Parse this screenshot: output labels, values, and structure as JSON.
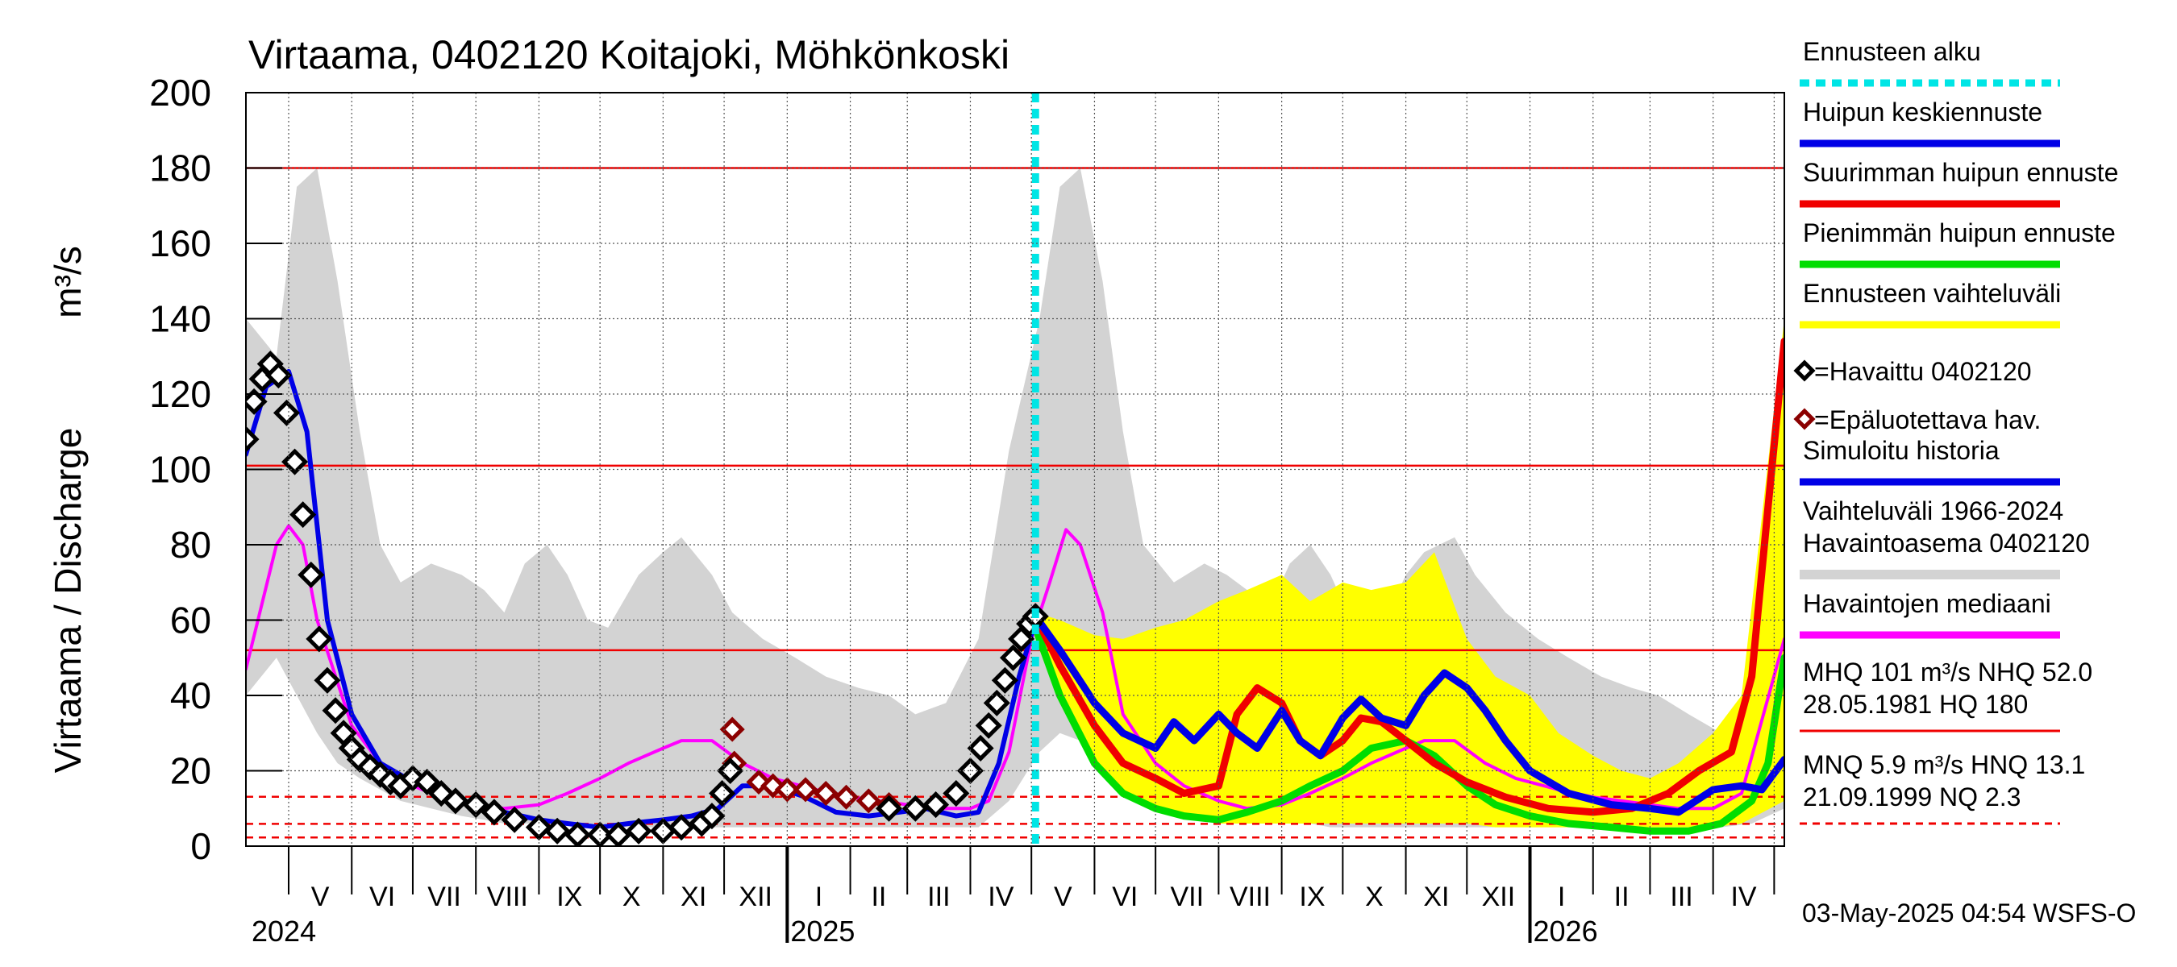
{
  "chart_data": {
    "type": "line",
    "title": "Virtaama, 0402120 Koitajoki, Möhkönkoski",
    "ylabel": "Virtaama / Discharge",
    "yunit": "m³/s",
    "ylim": [
      0,
      200
    ],
    "yticks": [
      "0",
      "20",
      "40",
      "60",
      "80",
      "100",
      "120",
      "140",
      "160",
      "180",
      "200"
    ],
    "xlim": [
      "2024-04-10",
      "2026-05-06"
    ],
    "months": [
      "V",
      "VI",
      "VII",
      "VIII",
      "IX",
      "X",
      "XI",
      "XII",
      "I",
      "II",
      "III",
      "IV",
      "V",
      "VI",
      "VII",
      "VIII",
      "IX",
      "X",
      "XI",
      "XII",
      "I",
      "II",
      "III",
      "IV"
    ],
    "years": [
      "2024",
      "2025",
      "2026"
    ],
    "grid": true,
    "legend_position": "right",
    "forecast_start": "2025-05-03",
    "reference_lines": [
      {
        "name": "HQ",
        "value": 180,
        "style": "solid"
      },
      {
        "name": "MHQ",
        "value": 101,
        "style": "solid"
      },
      {
        "name": "NHQ",
        "value": 52.0,
        "style": "solid"
      },
      {
        "name": "HNQ",
        "value": 13.1,
        "style": "dashed"
      },
      {
        "name": "MNQ",
        "value": 5.9,
        "style": "dashed"
      },
      {
        "name": "NQ",
        "value": 2.3,
        "style": "dashed"
      }
    ],
    "legend": [
      {
        "label": "Ennusteen alku",
        "color": "#00e5e5",
        "kind": "dashed"
      },
      {
        "label": "Huipun keskiennuste",
        "color": "#0000e6",
        "kind": "line"
      },
      {
        "label": "Suurimman huipun ennuste",
        "color": "#f00000",
        "kind": "line"
      },
      {
        "label": "Pienimmän huipun ennuste",
        "color": "#00dd00",
        "kind": "line"
      },
      {
        "label": "Ennusteen vaihteluväli",
        "color": "#ffff00",
        "kind": "line"
      },
      {
        "label": "=Havaittu 0402120",
        "color": "#000000",
        "kind": "diamond"
      },
      {
        "label": "=Epäluotettava hav.",
        "color": "#8b0000",
        "kind": "diamond"
      },
      {
        "label": "Simuloitu historia",
        "color": "#0000e6",
        "kind": "line"
      },
      {
        "label": "Vaihteluväli 1966-2024",
        "label2": " Havaintoasema 0402120",
        "color": "#d3d3d3",
        "kind": "band"
      },
      {
        "label": "Havaintojen mediaani",
        "color": "#ff00ff",
        "kind": "line"
      }
    ],
    "stats": [
      {
        "line1": "MHQ  101 m³/s NHQ 52.0",
        "line2": "28.05.1981 HQ  180",
        "color": "#f00000",
        "kind": "solid"
      },
      {
        "line1": "MNQ  5.9 m³/s HNQ 13.1",
        "line2": "21.09.1999 NQ  2.3",
        "color": "#f00000",
        "kind": "dashed"
      }
    ],
    "footer": "03-May-2025 04:54 WSFS-O",
    "series": [
      {
        "name": "Vaihteluväli 1966-2024",
        "kind": "band",
        "color": "#d3d3d3",
        "x": [
          "2024-04-10",
          "2024-04-25",
          "2024-05-05",
          "2024-05-15",
          "2024-05-25",
          "2024-06-05",
          "2024-06-15",
          "2024-06-25",
          "2024-07-10",
          "2024-07-25",
          "2024-08-05",
          "2024-08-15",
          "2024-08-25",
          "2024-09-05",
          "2024-09-15",
          "2024-09-25",
          "2024-10-05",
          "2024-10-20",
          "2024-11-01",
          "2024-11-10",
          "2024-11-25",
          "2024-12-05",
          "2024-12-20",
          "2025-01-05",
          "2025-01-20",
          "2025-02-05",
          "2025-02-20",
          "2025-03-05",
          "2025-03-20",
          "2025-04-05",
          "2025-04-20",
          "2025-05-05",
          "2025-05-15",
          "2025-05-25",
          "2025-06-05",
          "2025-06-15",
          "2025-06-25",
          "2025-07-10",
          "2025-07-25",
          "2025-08-05",
          "2025-08-15",
          "2025-08-25",
          "2025-09-05",
          "2025-09-15",
          "2025-09-25",
          "2025-10-05",
          "2025-10-20",
          "2025-11-01",
          "2025-11-10",
          "2025-11-25",
          "2025-12-05",
          "2025-12-20",
          "2026-01-05",
          "2026-01-20",
          "2026-02-05",
          "2026-02-20",
          "2026-03-05",
          "2026-03-20",
          "2026-04-05",
          "2026-04-20",
          "2026-05-06"
        ],
        "upper": [
          140,
          130,
          175,
          180,
          150,
          110,
          80,
          70,
          75,
          72,
          68,
          62,
          75,
          80,
          72,
          60,
          58,
          72,
          78,
          82,
          72,
          62,
          55,
          50,
          45,
          42,
          40,
          35,
          38,
          55,
          105,
          140,
          175,
          180,
          150,
          110,
          80,
          70,
          75,
          72,
          68,
          62,
          75,
          80,
          72,
          60,
          58,
          72,
          78,
          82,
          72,
          62,
          55,
          50,
          45,
          42,
          40,
          35,
          30,
          45,
          65
        ],
        "lower": [
          40,
          50,
          40,
          30,
          22,
          18,
          15,
          12,
          10,
          8,
          7,
          6,
          6,
          6,
          6,
          5,
          5,
          5,
          5,
          5,
          5,
          5,
          5,
          5,
          5,
          5,
          5,
          5,
          5,
          5,
          12,
          25,
          30,
          28,
          20,
          15,
          12,
          10,
          8,
          7,
          6,
          6,
          6,
          6,
          5,
          5,
          5,
          5,
          5,
          5,
          5,
          5,
          5,
          5,
          5,
          5,
          5,
          5,
          5,
          6,
          10
        ]
      },
      {
        "name": "Ennusteen vaihteluväli",
        "kind": "band",
        "color": "#ffff00",
        "x": [
          "2025-05-03",
          "2025-05-15",
          "2025-06-01",
          "2025-06-15",
          "2025-07-01",
          "2025-07-15",
          "2025-08-01",
          "2025-08-15",
          "2025-09-01",
          "2025-09-15",
          "2025-10-01",
          "2025-10-15",
          "2025-11-01",
          "2025-11-15",
          "2025-12-01",
          "2025-12-15",
          "2026-01-01",
          "2026-01-15",
          "2026-02-01",
          "2026-02-15",
          "2026-03-01",
          "2026-03-15",
          "2026-04-01",
          "2026-04-15",
          "2026-05-06"
        ],
        "upper": [
          62,
          60,
          56,
          55,
          58,
          60,
          65,
          68,
          72,
          65,
          70,
          68,
          70,
          78,
          55,
          45,
          40,
          30,
          24,
          20,
          18,
          22,
          30,
          40,
          140
        ],
        "lower": [
          55,
          38,
          22,
          14,
          10,
          8,
          6,
          6,
          6,
          6,
          6,
          6,
          6,
          6,
          6,
          5,
          5,
          5,
          5,
          5,
          5,
          5,
          5,
          6,
          12
        ]
      },
      {
        "name": "Havaintojen mediaani",
        "color": "#ff00ff",
        "x": [
          "2024-04-10",
          "2024-04-25",
          "2024-05-01",
          "2024-05-08",
          "2024-05-15",
          "2024-06-01",
          "2024-06-15",
          "2024-07-01",
          "2024-07-15",
          "2024-08-01",
          "2024-08-15",
          "2024-09-01",
          "2024-09-15",
          "2024-10-01",
          "2024-10-15",
          "2024-11-01",
          "2024-11-10",
          "2024-11-25",
          "2024-12-10",
          "2024-12-25",
          "2025-01-15",
          "2025-02-01",
          "2025-02-15",
          "2025-03-01",
          "2025-03-15",
          "2025-04-01",
          "2025-04-10",
          "2025-04-20",
          "2025-05-01",
          "2025-05-10",
          "2025-05-18",
          "2025-05-25",
          "2025-06-05",
          "2025-06-15",
          "2025-07-01",
          "2025-07-15",
          "2025-08-01",
          "2025-08-15",
          "2025-09-01",
          "2025-09-15",
          "2025-10-01",
          "2025-10-15",
          "2025-11-01",
          "2025-11-10",
          "2025-11-25",
          "2025-12-10",
          "2025-12-25",
          "2026-01-15",
          "2026-02-01",
          "2026-02-15",
          "2026-03-01",
          "2026-03-15",
          "2026-04-01",
          "2026-04-15",
          "2026-05-06"
        ],
        "values": [
          47,
          80,
          85,
          80,
          60,
          32,
          22,
          16,
          13,
          11,
          10,
          11,
          14,
          18,
          22,
          26,
          28,
          28,
          22,
          18,
          15,
          13,
          12,
          11,
          10,
          10,
          12,
          25,
          55,
          70,
          84,
          80,
          62,
          35,
          22,
          16,
          12,
          10,
          11,
          14,
          18,
          22,
          26,
          28,
          28,
          22,
          18,
          15,
          13,
          12,
          11,
          10,
          10,
          14,
          55
        ]
      },
      {
        "name": "Simuloitu historia",
        "color": "#0000e6",
        "x": [
          "2024-04-10",
          "2024-04-20",
          "2024-05-01",
          "2024-05-10",
          "2024-05-20",
          "2024-06-01",
          "2024-06-15",
          "2024-07-01",
          "2024-07-15",
          "2024-08-01",
          "2024-08-15",
          "2024-09-01",
          "2024-09-15",
          "2024-10-01",
          "2024-10-15",
          "2024-11-01",
          "2024-11-15",
          "2024-11-28",
          "2024-12-10",
          "2024-12-25",
          "2025-01-10",
          "2025-01-25",
          "2025-02-10",
          "2025-02-25",
          "2025-03-10",
          "2025-03-25",
          "2025-04-05",
          "2025-04-15",
          "2025-04-25",
          "2025-05-03"
        ],
        "values": [
          104,
          122,
          126,
          110,
          60,
          35,
          22,
          17,
          14,
          11,
          9,
          7,
          6,
          5,
          6,
          7,
          8,
          10,
          16,
          16,
          13,
          9,
          8,
          9,
          10,
          8,
          9,
          22,
          45,
          60
        ]
      },
      {
        "name": "Havaittu 0402120",
        "kind": "diamonds",
        "color": "#000000",
        "x": [
          "2024-04-10",
          "2024-04-14",
          "2024-04-18",
          "2024-04-22",
          "2024-04-26",
          "2024-04-30",
          "2024-05-04",
          "2024-05-08",
          "2024-05-12",
          "2024-05-16",
          "2024-05-20",
          "2024-05-24",
          "2024-05-28",
          "2024-06-01",
          "2024-06-05",
          "2024-06-10",
          "2024-06-15",
          "2024-06-20",
          "2024-06-25",
          "2024-07-01",
          "2024-07-08",
          "2024-07-15",
          "2024-07-22",
          "2024-08-01",
          "2024-08-10",
          "2024-08-20",
          "2024-09-01",
          "2024-09-10",
          "2024-09-20",
          "2024-10-01",
          "2024-10-10",
          "2024-10-20",
          "2024-11-01",
          "2024-11-10",
          "2024-11-20",
          "2024-11-25",
          "2024-11-30",
          "2024-12-04",
          "2025-02-20",
          "2025-03-05",
          "2025-03-15",
          "2025-03-25",
          "2025-04-01",
          "2025-04-06",
          "2025-04-10",
          "2025-04-14",
          "2025-04-18",
          "2025-04-22",
          "2025-04-26",
          "2025-04-30",
          "2025-05-03"
        ],
        "values": [
          108,
          118,
          124,
          128,
          125,
          115,
          102,
          88,
          72,
          55,
          44,
          36,
          30,
          26,
          23,
          21,
          19,
          17,
          16,
          18,
          17,
          14,
          12,
          11,
          9,
          7,
          5,
          4,
          3,
          3,
          3,
          4,
          4,
          5,
          6,
          8,
          14,
          20,
          10,
          10,
          11,
          14,
          20,
          26,
          32,
          38,
          44,
          50,
          55,
          59,
          61
        ]
      },
      {
        "name": "Epäluotettava hav.",
        "kind": "diamonds",
        "color": "#8b0000",
        "x": [
          "2024-12-05",
          "2024-12-06",
          "2024-12-18",
          "2024-12-25",
          "2025-01-01",
          "2025-01-10",
          "2025-01-20",
          "2025-01-30",
          "2025-02-10",
          "2025-02-20"
        ],
        "values": [
          31,
          22,
          17,
          16,
          15,
          15,
          14,
          13,
          12,
          11
        ]
      },
      {
        "name": "Huipun keskiennuste",
        "color": "#0000e6",
        "x": [
          "2025-05-03",
          "2025-05-15",
          "2025-06-01",
          "2025-06-15",
          "2025-07-01",
          "2025-07-10",
          "2025-07-20",
          "2025-08-01",
          "2025-08-10",
          "2025-08-20",
          "2025-09-01",
          "2025-09-10",
          "2025-09-20",
          "2025-10-01",
          "2025-10-10",
          "2025-10-20",
          "2025-11-01",
          "2025-11-10",
          "2025-11-20",
          "2025-12-01",
          "2025-12-10",
          "2025-12-20",
          "2026-01-01",
          "2026-01-20",
          "2026-02-10",
          "2026-03-01",
          "2026-03-15",
          "2026-04-01",
          "2026-04-15",
          "2026-04-25",
          "2026-05-06"
        ],
        "values": [
          61,
          52,
          38,
          30,
          26,
          33,
          28,
          35,
          30,
          26,
          36,
          28,
          24,
          34,
          39,
          34,
          32,
          40,
          46,
          42,
          36,
          28,
          20,
          14,
          11,
          10,
          9,
          15,
          16,
          15,
          23
        ]
      },
      {
        "name": "Suurimman huipun ennuste",
        "color": "#f00000",
        "x": [
          "2025-05-03",
          "2025-05-15",
          "2025-06-01",
          "2025-06-15",
          "2025-07-01",
          "2025-07-15",
          "2025-08-01",
          "2025-08-10",
          "2025-08-20",
          "2025-09-01",
          "2025-09-10",
          "2025-09-20",
          "2025-10-01",
          "2025-10-10",
          "2025-10-20",
          "2025-11-01",
          "2025-11-15",
          "2025-12-01",
          "2025-12-20",
          "2026-01-10",
          "2026-02-01",
          "2026-02-20",
          "2026-03-10",
          "2026-03-25",
          "2026-04-10",
          "2026-04-20",
          "2026-04-28",
          "2026-05-06"
        ],
        "values": [
          61,
          48,
          32,
          22,
          18,
          14,
          16,
          35,
          42,
          38,
          28,
          24,
          28,
          34,
          33,
          28,
          22,
          17,
          13,
          10,
          9,
          10,
          14,
          20,
          25,
          45,
          90,
          134
        ]
      },
      {
        "name": "Pienimmän huipun ennuste",
        "color": "#00dd00",
        "x": [
          "2025-05-03",
          "2025-05-15",
          "2025-06-01",
          "2025-06-15",
          "2025-07-01",
          "2025-07-15",
          "2025-08-01",
          "2025-08-15",
          "2025-09-01",
          "2025-09-15",
          "2025-10-01",
          "2025-10-15",
          "2025-11-01",
          "2025-11-15",
          "2025-12-01",
          "2025-12-15",
          "2026-01-01",
          "2026-01-20",
          "2026-02-10",
          "2026-03-01",
          "2026-03-20",
          "2026-04-05",
          "2026-04-20",
          "2026-04-28",
          "2026-05-06"
        ],
        "values": [
          58,
          40,
          22,
          14,
          10,
          8,
          7,
          9,
          12,
          16,
          20,
          26,
          28,
          24,
          16,
          11,
          8,
          6,
          5,
          4,
          4,
          6,
          12,
          22,
          50
        ]
      }
    ]
  }
}
